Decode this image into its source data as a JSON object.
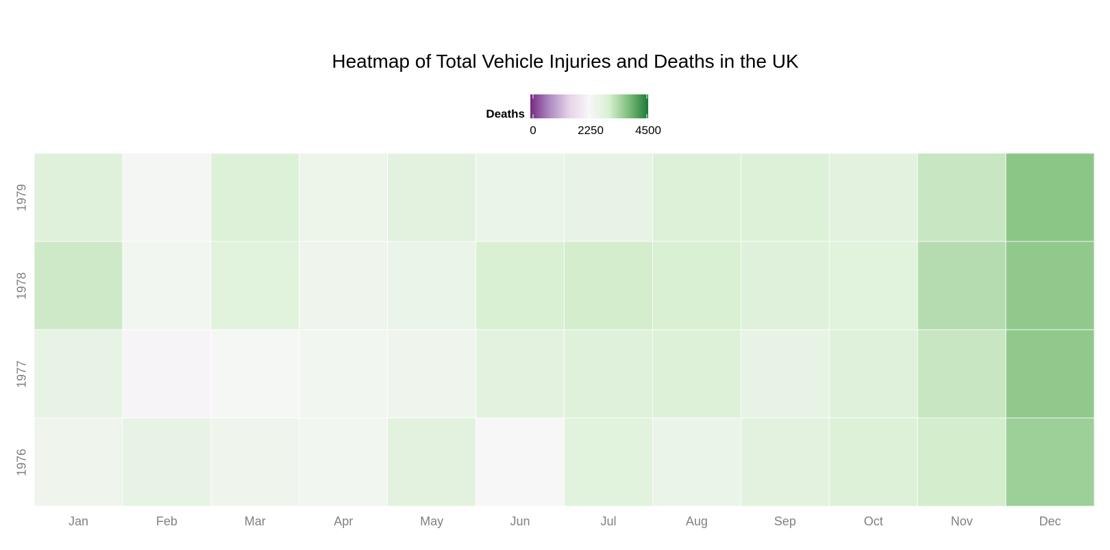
{
  "chart_data": {
    "type": "heatmap",
    "title": "Heatmap of Total Vehicle Injuries and Deaths in the UK",
    "xlabel": "",
    "ylabel": "",
    "x_categories": [
      "Jan",
      "Feb",
      "Mar",
      "Apr",
      "May",
      "Jun",
      "Jul",
      "Aug",
      "Sep",
      "Oct",
      "Nov",
      "Dec"
    ],
    "y_categories": [
      "1976",
      "1977",
      "1978",
      "1979"
    ],
    "values": {
      "1979": [
        2850,
        2350,
        2900,
        2500,
        2750,
        2550,
        2650,
        2900,
        2900,
        2750,
        3150,
        3650
      ],
      "1978": [
        3100,
        2400,
        2800,
        2450,
        2550,
        3000,
        3050,
        3000,
        2850,
        2800,
        3300,
        3600
      ],
      "1977": [
        2650,
        2180,
        2300,
        2400,
        2450,
        2750,
        2850,
        2900,
        2650,
        2850,
        3150,
        3600
      ],
      "1976": [
        2450,
        2650,
        2450,
        2400,
        2750,
        2250,
        2800,
        2550,
        2750,
        2900,
        3050,
        3500
      ]
    },
    "value_range": [
      0,
      4500
    ],
    "legend": {
      "title": "Deaths",
      "ticks": [
        "0",
        "2250",
        "4500"
      ],
      "position": "top",
      "colors": [
        "#762a83",
        "#af8dc3",
        "#e7d4e8",
        "#f7f7f7",
        "#d9f0d3",
        "#7fbf7b",
        "#1b7837"
      ]
    },
    "grid": false
  }
}
